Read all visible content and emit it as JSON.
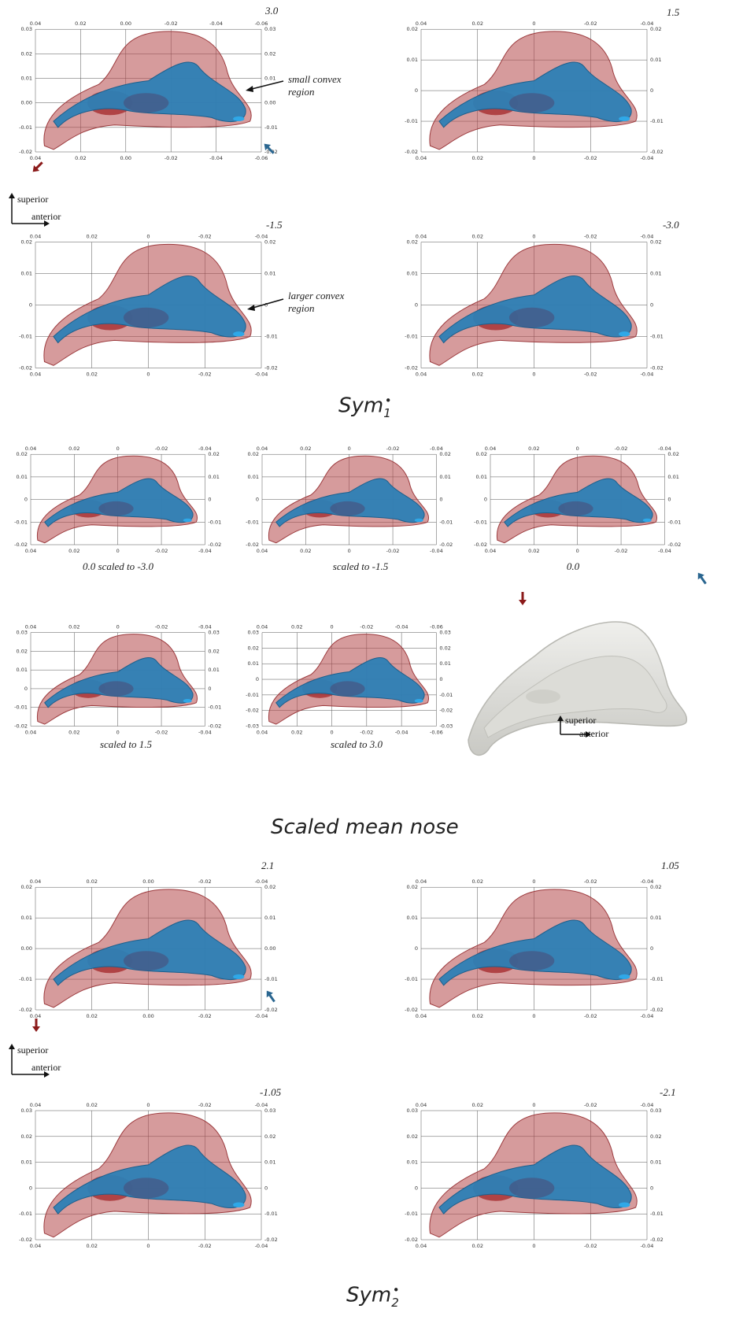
{
  "sections": [
    {
      "name": "Sym",
      "sub": "1",
      "sup": "•"
    },
    {
      "name": "Scaled mean nose"
    },
    {
      "name": "Sym",
      "sub": "2",
      "sup": "•"
    }
  ],
  "annotations": {
    "small_convex": "small convex region",
    "larger_convex": "larger convex region"
  },
  "orientation": {
    "superior": "superior",
    "anterior": "anterior"
  },
  "colors": {
    "outer": "#b5484b",
    "inner": "#2d7fb5",
    "arrow_red": "#8b1a1a",
    "arrow_blue": "#2a6690",
    "mean": "#dcdcd8"
  },
  "panels": [
    {
      "id": "s1a",
      "value": "3.0",
      "xt": [
        "0.04",
        "0.02",
        "0.00",
        "-0.02",
        "-0.04",
        "-0.06"
      ],
      "yt": [
        "0.03",
        "0.02",
        "0.01",
        "0.00",
        "-0.01",
        "-0.02"
      ]
    },
    {
      "id": "s1b",
      "value": "1.5",
      "xt": [
        "0.04",
        "0.02",
        "0",
        "-0.02",
        "-0.04"
      ],
      "yt": [
        "0.02",
        "0.01",
        "0",
        "-0.01",
        "-0.02"
      ]
    },
    {
      "id": "s1c",
      "value": "-1.5",
      "xt": [
        "0.04",
        "0.02",
        "0",
        "-0.02",
        "-0.04"
      ],
      "yt": [
        "0.02",
        "0.01",
        "0",
        "-0.01",
        "-0.02"
      ]
    },
    {
      "id": "s1d",
      "value": "-3.0",
      "xt": [
        "0.04",
        "0.02",
        "0",
        "-0.02",
        "-0.04"
      ],
      "yt": [
        "0.02",
        "0.01",
        "0",
        "-0.01",
        "-0.02"
      ]
    },
    {
      "id": "m1",
      "caption": "0.0 scaled to -3.0",
      "xt": [
        "0.04",
        "0.02",
        "0",
        "-0.02",
        "-0.04"
      ],
      "yt": [
        "0.02",
        "0.01",
        "0",
        "-0.01",
        "-0.02"
      ]
    },
    {
      "id": "m2",
      "caption": "scaled to -1.5",
      "xt": [
        "0.04",
        "0.02",
        "0",
        "-0.02",
        "-0.04"
      ],
      "yt": [
        "0.02",
        "0.01",
        "0",
        "-0.01",
        "-0.02"
      ]
    },
    {
      "id": "m3",
      "caption": "0.0",
      "xt": [
        "0.04",
        "0.02",
        "0",
        "-0.02",
        "-0.04"
      ],
      "yt": [
        "0.02",
        "0.01",
        "0",
        "-0.01",
        "-0.02"
      ]
    },
    {
      "id": "m4",
      "caption": "scaled to 1.5",
      "xt": [
        "0.04",
        "0.02",
        "0",
        "-0.02",
        "-0.04"
      ],
      "yt": [
        "0.03",
        "0.02",
        "0.01",
        "0",
        "-0.01",
        "-0.02"
      ]
    },
    {
      "id": "m5",
      "caption": "scaled to 3.0",
      "xt": [
        "0.04",
        "0.02",
        "0",
        "-0.02",
        "-0.04",
        "-0.06"
      ],
      "yt": [
        "0.03",
        "0.02",
        "0.01",
        "0",
        "-0.01",
        "-0.02",
        "-0.03"
      ]
    },
    {
      "id": "s2a",
      "value": "2.1",
      "xt": [
        "0.04",
        "0.02",
        "0.00",
        "-0.02",
        "-0.04"
      ],
      "yt": [
        "0.02",
        "0.01",
        "0.00",
        "-0.01",
        "-0.02"
      ]
    },
    {
      "id": "s2b",
      "value": "1.05",
      "xt": [
        "0.04",
        "0.02",
        "0",
        "-0.02",
        "-0.04"
      ],
      "yt": [
        "0.02",
        "0.01",
        "0",
        "-0.01",
        "-0.02"
      ]
    },
    {
      "id": "s2c",
      "value": "-1.05",
      "xt": [
        "0.04",
        "0.02",
        "0",
        "-0.02",
        "-0.04"
      ],
      "yt": [
        "0.03",
        "0.02",
        "0.01",
        "0",
        "-0.01",
        "-0.02"
      ]
    },
    {
      "id": "s2d",
      "value": "-2.1",
      "xt": [
        "0.04",
        "0.02",
        "0",
        "-0.02",
        "-0.04"
      ],
      "yt": [
        "0.03",
        "0.02",
        "0.01",
        "0",
        "-0.01",
        "-0.02"
      ]
    }
  ]
}
